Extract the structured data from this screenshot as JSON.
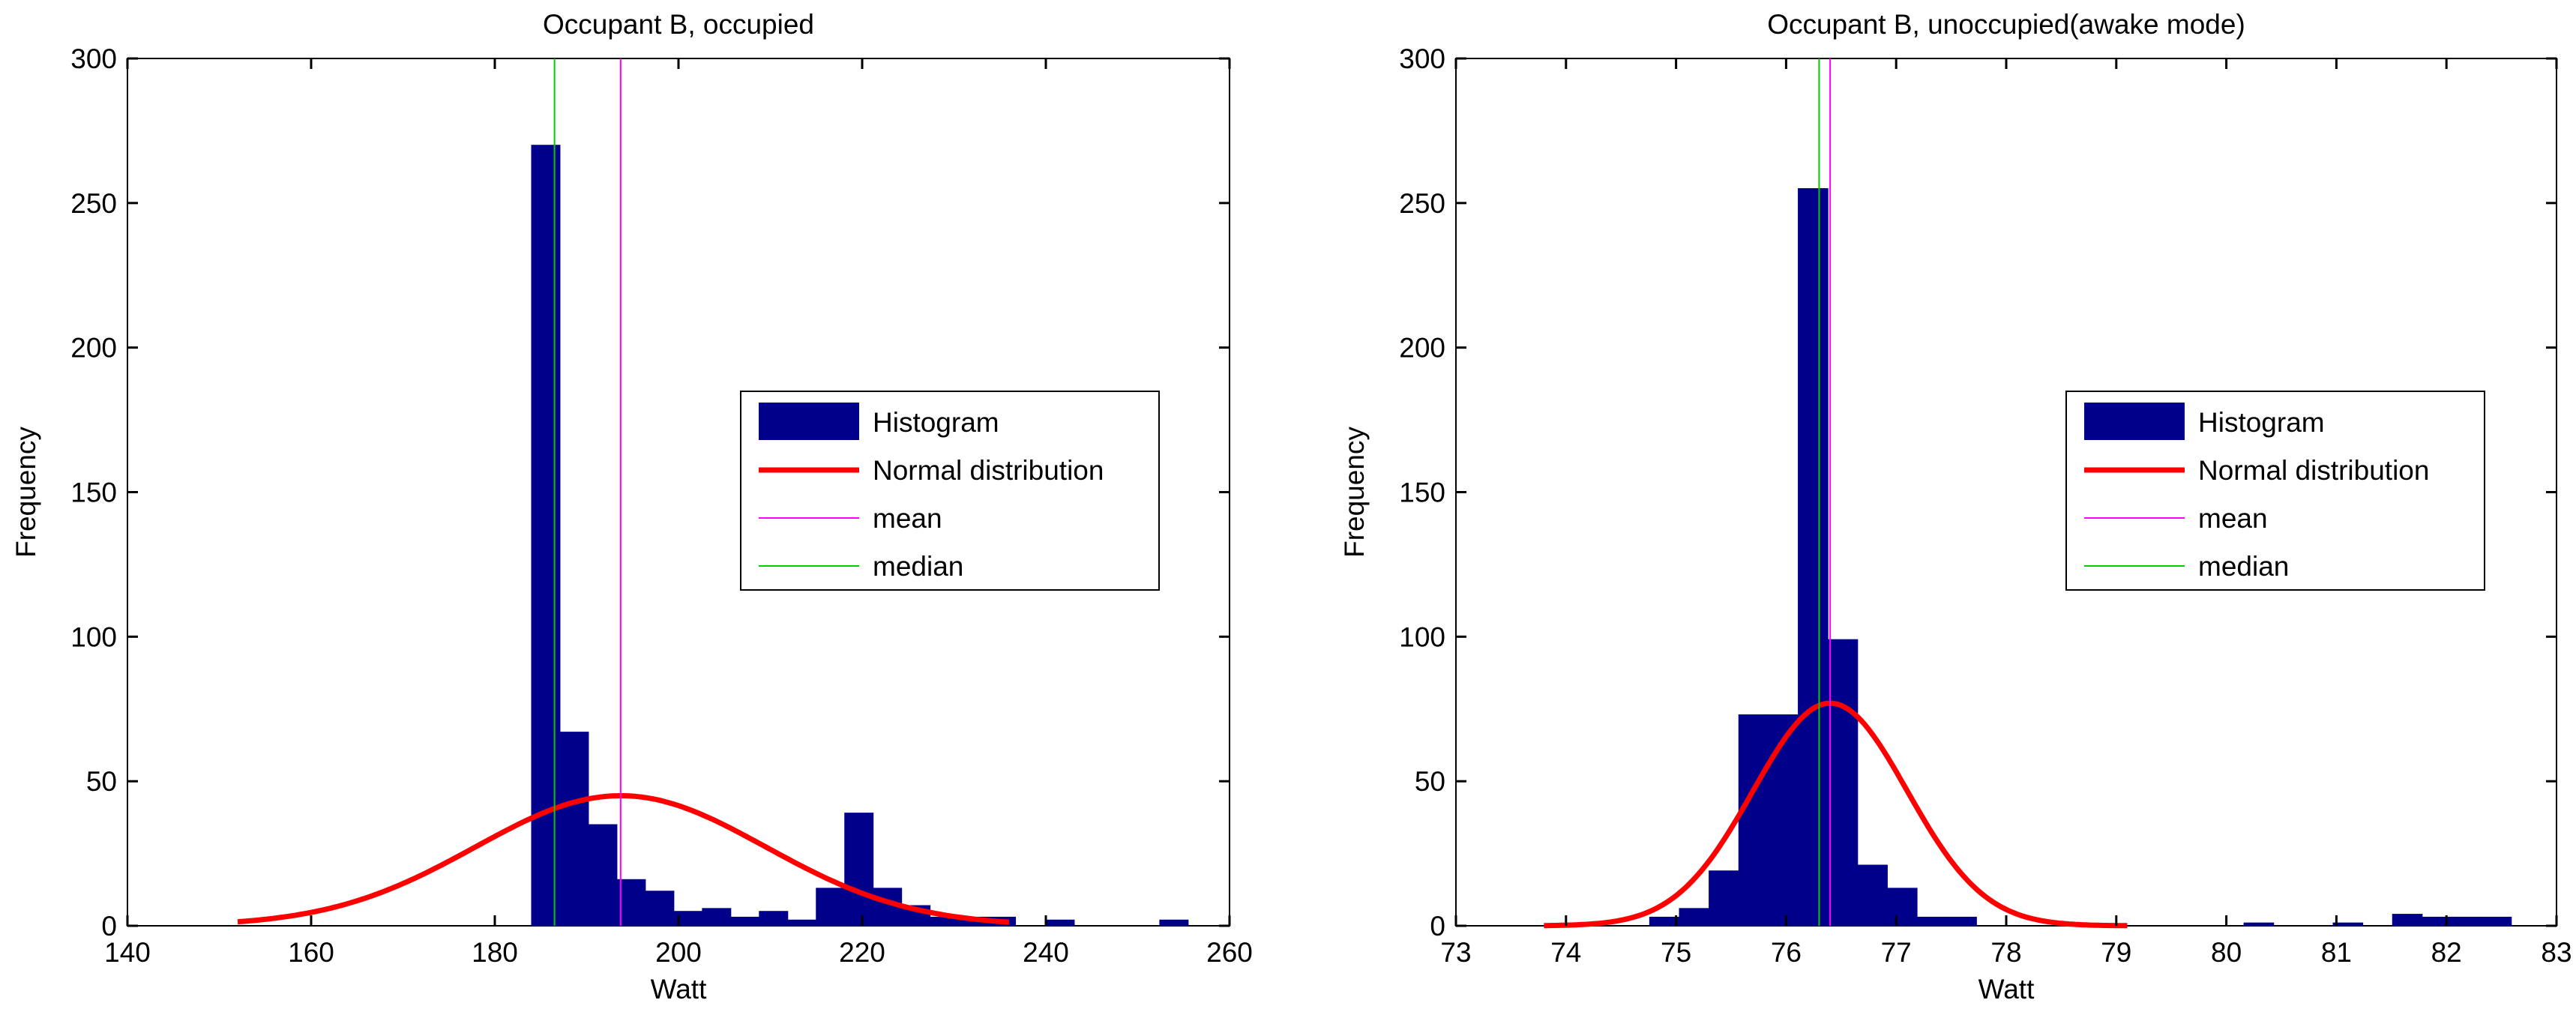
{
  "chart_data": [
    {
      "type": "bar",
      "title": "Occupant B, occupied",
      "xlabel": "Watt",
      "ylabel": "Frequency",
      "xlim": [
        140,
        260
      ],
      "ylim": [
        0,
        300
      ],
      "xticks": [
        "140",
        "160",
        "180",
        "200",
        "220",
        "240",
        "260"
      ],
      "yticks": [
        "0",
        "50",
        "100",
        "150",
        "200",
        "250",
        "300"
      ],
      "bin_width": 3.1,
      "bins": [
        {
          "start": 184.0,
          "value": 270
        },
        {
          "start": 187.1,
          "value": 67
        },
        {
          "start": 190.2,
          "value": 35
        },
        {
          "start": 193.3,
          "value": 16
        },
        {
          "start": 196.4,
          "value": 12
        },
        {
          "start": 199.5,
          "value": 5
        },
        {
          "start": 202.6,
          "value": 6
        },
        {
          "start": 205.7,
          "value": 3
        },
        {
          "start": 208.8,
          "value": 5
        },
        {
          "start": 211.9,
          "value": 2
        },
        {
          "start": 215.0,
          "value": 13
        },
        {
          "start": 218.1,
          "value": 39
        },
        {
          "start": 221.2,
          "value": 13
        },
        {
          "start": 224.3,
          "value": 7
        },
        {
          "start": 227.4,
          "value": 3
        },
        {
          "start": 230.5,
          "value": 3
        },
        {
          "start": 233.6,
          "value": 3
        },
        {
          "start": 240.0,
          "value": 2
        },
        {
          "start": 252.4,
          "value": 2
        }
      ],
      "normal": {
        "mean": 193.7,
        "sd": 15.8,
        "peak": 45,
        "xmin": 152,
        "xmax": 236
      },
      "mean_line": 193.7,
      "median_line": 186.5,
      "legend": {
        "position": "center-right",
        "entries": [
          "Histogram",
          "Normal distribution",
          "mean",
          "median"
        ]
      }
    },
    {
      "type": "bar",
      "title": "Occupant B, unoccupied(awake mode)",
      "xlabel": "Watt",
      "ylabel": "Frequency",
      "xlim": [
        73,
        83
      ],
      "ylim": [
        0,
        300
      ],
      "xticks": [
        "73",
        "74",
        "75",
        "76",
        "77",
        "78",
        "79",
        "80",
        "81",
        "82",
        "83"
      ],
      "yticks": [
        "0",
        "50",
        "100",
        "150",
        "200",
        "250",
        "300"
      ],
      "bin_width": 0.27,
      "bins": [
        {
          "start": 74.76,
          "value": 3
        },
        {
          "start": 75.03,
          "value": 6
        },
        {
          "start": 75.3,
          "value": 19
        },
        {
          "start": 75.57,
          "value": 73
        },
        {
          "start": 75.84,
          "value": 73
        },
        {
          "start": 76.11,
          "value": 255
        },
        {
          "start": 76.38,
          "value": 99
        },
        {
          "start": 76.65,
          "value": 21
        },
        {
          "start": 76.92,
          "value": 13
        },
        {
          "start": 77.19,
          "value": 3
        },
        {
          "start": 77.46,
          "value": 3
        },
        {
          "start": 80.16,
          "value": 1
        },
        {
          "start": 80.97,
          "value": 1
        },
        {
          "start": 81.51,
          "value": 4
        },
        {
          "start": 81.78,
          "value": 3
        },
        {
          "start": 82.05,
          "value": 3
        },
        {
          "start": 82.32,
          "value": 3
        }
      ],
      "normal": {
        "mean": 76.4,
        "sd": 0.7,
        "peak": 77,
        "xmin": 73.8,
        "xmax": 79.1
      },
      "mean_line": 76.4,
      "median_line": 76.3,
      "legend": {
        "position": "center-right",
        "entries": [
          "Histogram",
          "Normal distribution",
          "mean",
          "median"
        ]
      }
    }
  ],
  "colors": {
    "bar": "#00008b",
    "normal": "#ff0000",
    "mean": "#ff00ff",
    "median": "#00cc00",
    "axis": "#000000"
  }
}
